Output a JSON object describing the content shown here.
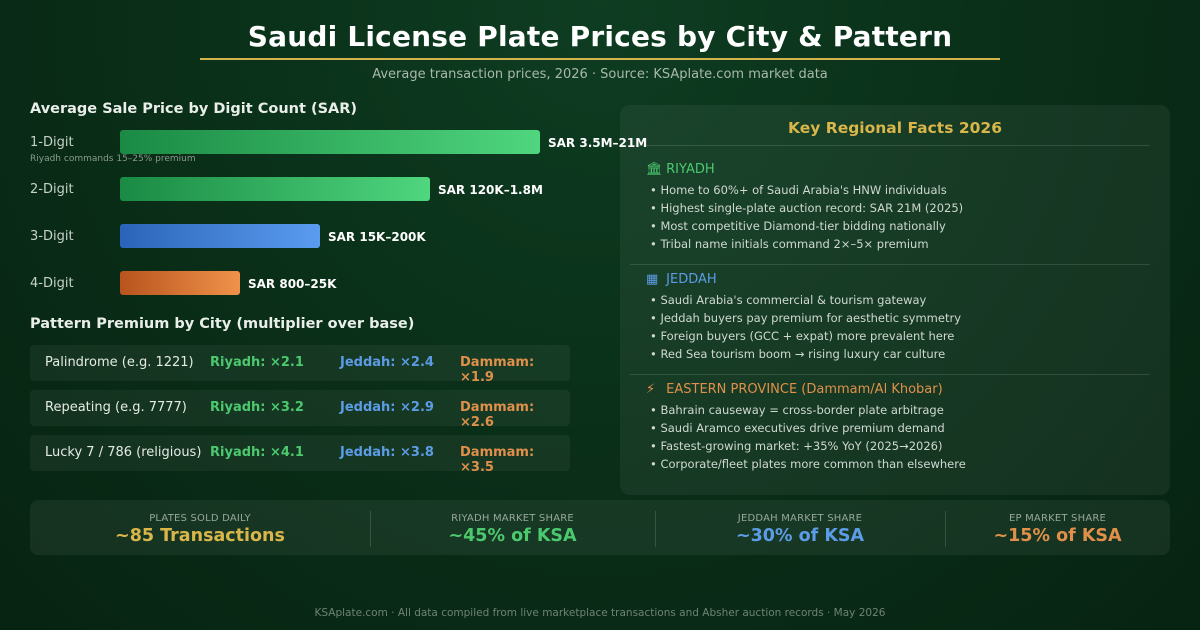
{
  "title": "Saudi License Plate Prices by City & Pattern",
  "subtitle": "Average transaction prices, 2026 · Source: KSAplate.com market data",
  "chart_data": {
    "type": "bar",
    "orientation": "horizontal",
    "title": "Average Sale Price by Digit Count (SAR)",
    "categories": [
      "1-Digit",
      "2-Digit",
      "3-Digit",
      "4-Digit"
    ],
    "values": [
      420,
      310,
      200,
      120
    ],
    "value_labels": [
      "SAR 3.5M–21M",
      "SAR 120K–1.8M",
      "SAR 15K–200K",
      "SAR 800–25K"
    ],
    "notes": {
      "1-Digit": "Riyadh commands 15–25% premium"
    },
    "colors": [
      [
        "#1a8a44",
        "#4fd67e"
      ],
      [
        "#1a8a44",
        "#4fd67e"
      ],
      [
        "#2a64b8",
        "#5b9cf0"
      ],
      [
        "#b8541e",
        "#f0924a"
      ]
    ],
    "xlim": [
      0,
      420
    ],
    "grid": false,
    "legend": "none"
  },
  "pattern": {
    "title": "Pattern Premium by City (multiplier over base)",
    "rows": [
      {
        "name": "Palindrome (e.g. 1221)",
        "riyadh": "Riyadh: ×2.1",
        "jeddah": "Jeddah: ×2.4",
        "dammam": "Dammam: ×1.9"
      },
      {
        "name": "Repeating (e.g. 7777)",
        "riyadh": "Riyadh: ×3.2",
        "jeddah": "Jeddah: ×2.9",
        "dammam": "Dammam: ×2.6"
      },
      {
        "name": "Lucky 7 / 786 (religious)",
        "riyadh": "Riyadh: ×4.1",
        "jeddah": "Jeddah: ×3.8",
        "dammam": "Dammam: ×3.5"
      }
    ],
    "colors": {
      "riyadh": "#4cc96f",
      "jeddah": "#5c9ce6",
      "dammam": "#e0904a"
    }
  },
  "facts": {
    "title": "Key Regional Facts 2026",
    "regions": [
      {
        "icon": "🏛",
        "icon_name": "landmark-icon",
        "name": "RIYADH",
        "color": "#4cc96f",
        "bullets": [
          "• Home to 60%+ of Saudi Arabia's HNW individuals",
          "• Highest single-plate auction record: SAR 21M (2025)",
          "• Most competitive Diamond-tier bidding nationally",
          "• Tribal name initials command 2×–5× premium"
        ]
      },
      {
        "icon": "▦",
        "icon_name": "city-icon",
        "name": "JEDDAH",
        "color": "#5c9ce6",
        "bullets": [
          "• Saudi Arabia's commercial & tourism gateway",
          "• Jeddah buyers pay premium for aesthetic symmetry",
          "• Foreign buyers (GCC + expat) more prevalent here",
          "• Red Sea tourism boom → rising luxury car culture"
        ]
      },
      {
        "icon": "⚡",
        "icon_name": "lightning-icon",
        "name": "EASTERN PROVINCE (Dammam/Al Khobar)",
        "color": "#e0904a",
        "bullets": [
          "• Bahrain causeway = cross-border plate arbitrage",
          "• Saudi Aramco executives drive premium demand",
          "• Fastest-growing market: +35% YoY (2025→2026)",
          "• Corporate/fleet plates more common than elsewhere"
        ]
      }
    ]
  },
  "stats": [
    {
      "label": "PLATES SOLD DAILY",
      "value": "~85 Transactions",
      "color": "#d9b64a"
    },
    {
      "label": "RIYADH MARKET SHARE",
      "value": "~45% of KSA",
      "color": "#4cc96f"
    },
    {
      "label": "JEDDAH MARKET SHARE",
      "value": "~30% of KSA",
      "color": "#5c9ce6"
    },
    {
      "label": "EP MARKET SHARE",
      "value": "~15% of KSA",
      "color": "#e0904a"
    }
  ],
  "footer": "KSAplate.com · All data compiled from live marketplace transactions and Absher auction records · May 2026"
}
